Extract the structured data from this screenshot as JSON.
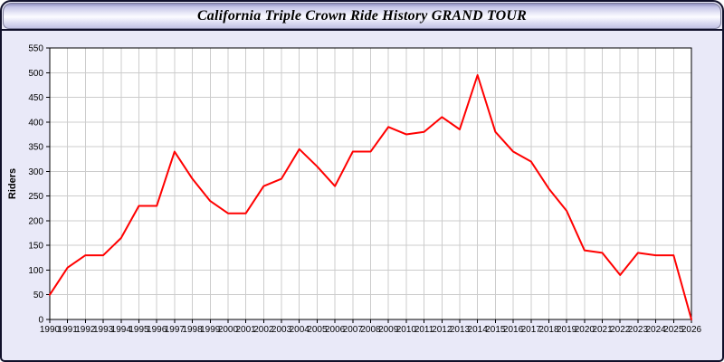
{
  "window": {
    "title": "California Triple Crown Ride History GRAND TOUR"
  },
  "chart_data": {
    "type": "line",
    "title": "California Triple Crown Ride History GRAND TOUR",
    "xlabel": "",
    "ylabel": "Riders",
    "x": [
      1990,
      1991,
      1992,
      1993,
      1994,
      1995,
      1996,
      1997,
      1998,
      1999,
      2000,
      2001,
      2002,
      2003,
      2004,
      2005,
      2006,
      2007,
      2008,
      2009,
      2010,
      2011,
      2012,
      2013,
      2014,
      2015,
      2016,
      2017,
      2018,
      2019,
      2020,
      2021,
      2022,
      2023,
      2024,
      2025,
      2026
    ],
    "series": [
      {
        "name": "Riders",
        "color": "#ff0000",
        "values": [
          50,
          105,
          130,
          130,
          165,
          230,
          230,
          340,
          285,
          240,
          215,
          215,
          270,
          285,
          345,
          310,
          270,
          340,
          340,
          390,
          375,
          380,
          410,
          385,
          495,
          380,
          340,
          320,
          265,
          220,
          140,
          135,
          90,
          135,
          130,
          130,
          0
        ]
      }
    ],
    "ylim": [
      0,
      550
    ],
    "yticks": [
      0,
      50,
      100,
      150,
      200,
      250,
      300,
      350,
      400,
      450,
      500,
      550
    ],
    "grid": true,
    "grid_color": "#cccccc",
    "plot_background": "#ffffff",
    "page_background": "#e9e9f8",
    "axis_color": "#000000",
    "legend": "none"
  }
}
